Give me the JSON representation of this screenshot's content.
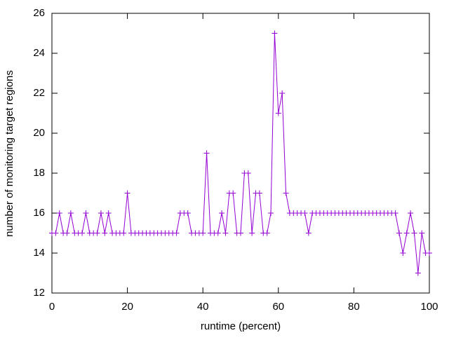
{
  "chart_data": {
    "type": "line",
    "xlabel": "runtime (percent)",
    "ylabel": "number of monitoring target regions",
    "x": [
      0,
      1,
      2,
      3,
      4,
      5,
      6,
      7,
      8,
      9,
      10,
      11,
      12,
      13,
      14,
      15,
      16,
      17,
      18,
      19,
      20,
      21,
      22,
      23,
      24,
      25,
      26,
      27,
      28,
      29,
      30,
      31,
      32,
      33,
      34,
      35,
      36,
      37,
      38,
      39,
      40,
      41,
      42,
      43,
      44,
      45,
      46,
      47,
      48,
      49,
      50,
      51,
      52,
      53,
      54,
      55,
      56,
      57,
      58,
      59,
      60,
      61,
      62,
      63,
      64,
      65,
      66,
      67,
      68,
      69,
      70,
      71,
      72,
      73,
      74,
      75,
      76,
      77,
      78,
      79,
      80,
      81,
      82,
      83,
      84,
      85,
      86,
      87,
      88,
      89,
      90,
      91,
      92,
      93,
      94,
      95,
      96,
      97,
      98,
      99,
      100
    ],
    "series": [
      {
        "color": "#9400d3",
        "values": [
          15,
          15,
          16,
          15,
          15,
          16,
          15,
          15,
          15,
          16,
          15,
          15,
          15,
          16,
          15,
          16,
          15,
          15,
          15,
          15,
          17,
          15,
          15,
          15,
          15,
          15,
          15,
          15,
          15,
          15,
          15,
          15,
          15,
          15,
          16,
          16,
          16,
          15,
          15,
          15,
          15,
          19,
          15,
          15,
          15,
          16,
          15,
          17,
          17,
          15,
          15,
          18,
          18,
          15,
          17,
          17,
          15,
          15,
          16,
          25,
          21,
          22,
          17,
          16,
          16,
          16,
          16,
          16,
          15,
          16,
          16,
          16,
          16,
          16,
          16,
          16,
          16,
          16,
          16,
          16,
          16,
          16,
          16,
          16,
          16,
          16,
          16,
          16,
          16,
          16,
          16,
          16,
          15,
          14,
          15,
          16,
          15,
          13,
          15,
          14,
          14
        ]
      }
    ],
    "xlim": [
      0,
      100
    ],
    "xticks": [
      0,
      20,
      40,
      60,
      80,
      100
    ],
    "ylim": [
      12,
      26
    ],
    "yticks": [
      12,
      14,
      16,
      18,
      20,
      22,
      24,
      26
    ]
  }
}
